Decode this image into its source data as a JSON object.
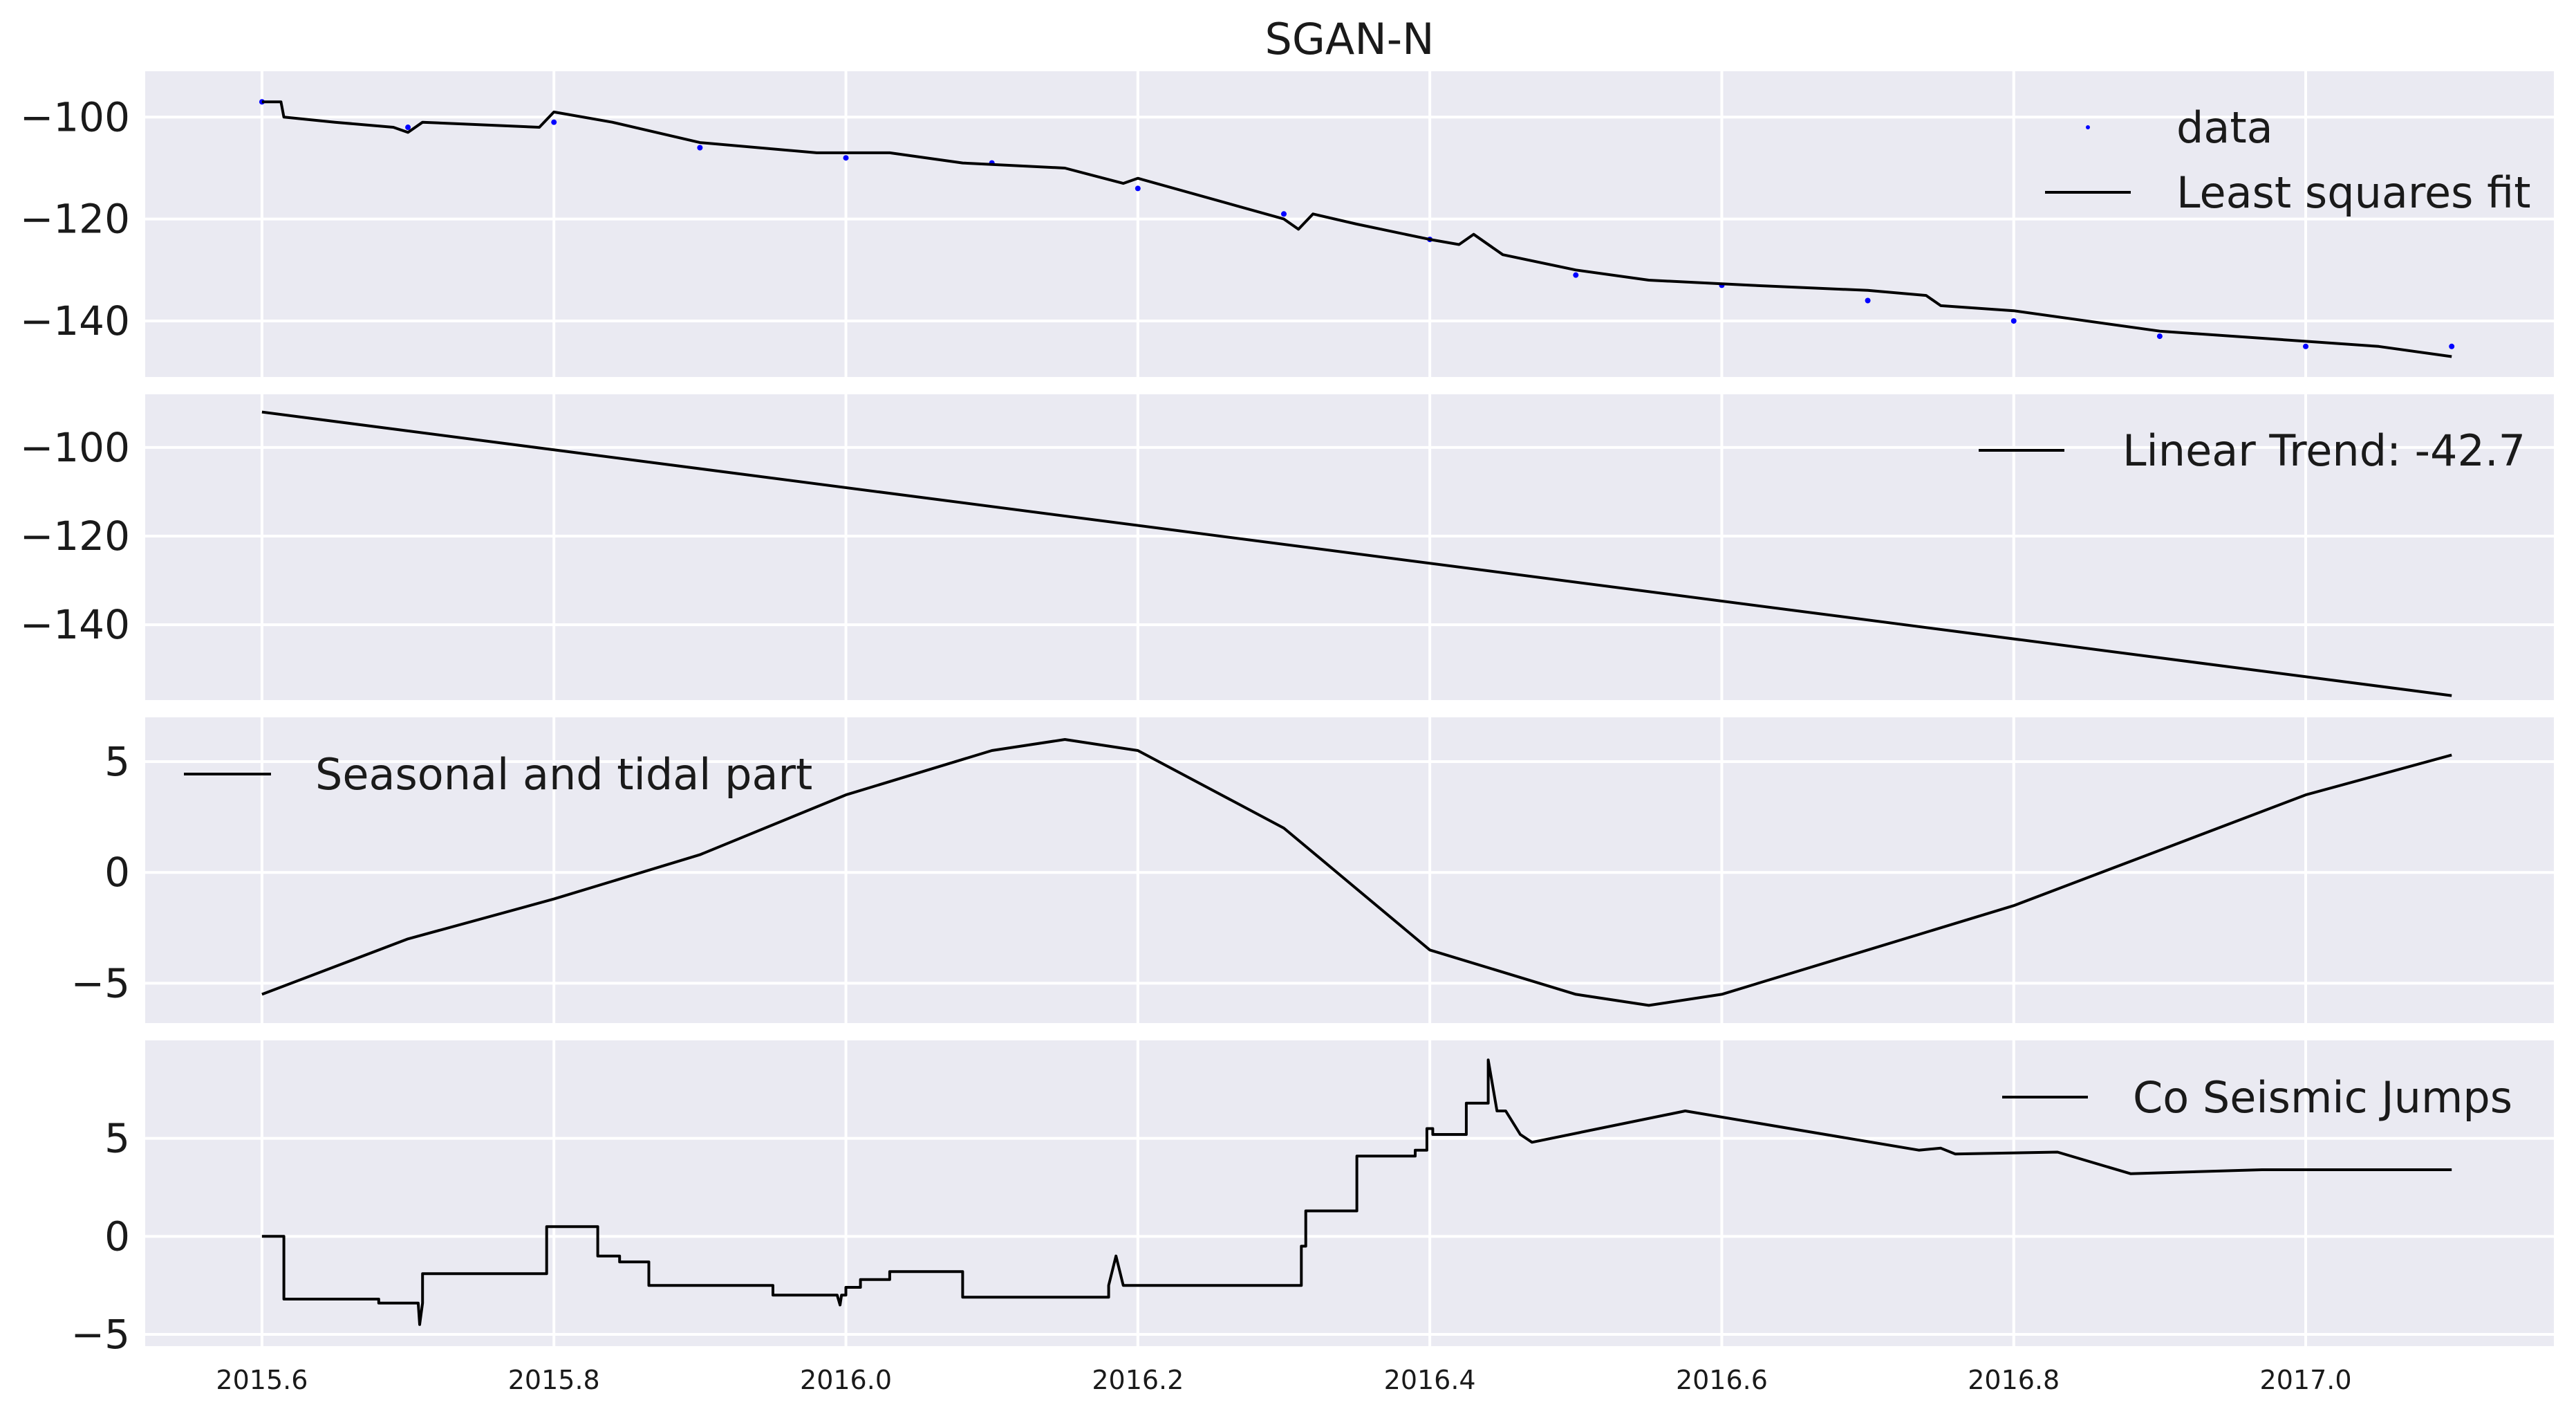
{
  "figure": {
    "title": "SGAN-N"
  },
  "chart_data": [
    {
      "type": "scatter+line",
      "panel": "data",
      "xlim": [
        2015.52,
        2017.17
      ],
      "ylim": [
        -151,
        -91
      ],
      "yticks": [
        -100,
        -120,
        -140
      ],
      "ytick_labels": [
        "−100",
        "−120",
        "−140"
      ],
      "series": [
        {
          "name": "data",
          "style": "points",
          "color": "#0000ff",
          "x": [
            2015.6,
            2015.7,
            2015.8,
            2015.9,
            2016.0,
            2016.1,
            2016.2,
            2016.3,
            2016.4,
            2016.5,
            2016.6,
            2016.7,
            2016.8,
            2016.9,
            2017.0,
            2017.1
          ],
          "y": [
            -97,
            -102,
            -101,
            -106,
            -108,
            -109,
            -114,
            -119,
            -124,
            -131,
            -133,
            -136,
            -140,
            -143,
            -145,
            -145
          ]
        },
        {
          "name": "Least squares fit",
          "style": "line",
          "color": "#000000",
          "x": [
            2015.6,
            2015.613,
            2015.615,
            2015.65,
            2015.69,
            2015.7,
            2015.71,
            2015.79,
            2015.8,
            2015.84,
            2015.9,
            2015.98,
            2016.03,
            2016.08,
            2016.15,
            2016.19,
            2016.2,
            2016.3,
            2016.31,
            2016.32,
            2016.35,
            2016.4,
            2016.42,
            2016.43,
            2016.45,
            2016.5,
            2016.55,
            2016.62,
            2016.7,
            2016.74,
            2016.75,
            2016.8,
            2016.9,
            2017.0,
            2017.05,
            2017.1
          ],
          "y": [
            -97,
            -97,
            -100,
            -101,
            -102,
            -103,
            -101,
            -102,
            -99,
            -101,
            -105,
            -107,
            -107,
            -109,
            -110,
            -113,
            -112,
            -120,
            -122,
            -119,
            -121,
            -124,
            -125,
            -123,
            -127,
            -130,
            -132,
            -133,
            -134,
            -135,
            -137,
            -138,
            -142,
            -144,
            -145,
            -147
          ]
        }
      ],
      "legend": [
        "data",
        "Least squares fit"
      ],
      "legend_position": "top-right"
    },
    {
      "type": "line",
      "panel": "linear",
      "xlim": [
        2015.52,
        2017.17
      ],
      "ylim": [
        -157,
        -88
      ],
      "yticks": [
        -100,
        -120,
        -140
      ],
      "ytick_labels": [
        "−100",
        "−120",
        "−140"
      ],
      "series": [
        {
          "name": "Linear Trend: -42.7",
          "x": [
            2015.6,
            2017.1
          ],
          "y": [
            -92,
            -156
          ]
        }
      ],
      "legend": [
        "Linear Trend: -42.7"
      ],
      "legend_position": "top-right"
    },
    {
      "type": "line",
      "panel": "seasonal",
      "xlim": [
        2015.52,
        2017.17
      ],
      "ylim": [
        -6.8,
        7.0
      ],
      "yticks": [
        5,
        0,
        -5
      ],
      "ytick_labels": [
        "5",
        "0",
        "−5"
      ],
      "series": [
        {
          "name": "Seasonal and tidal part",
          "x": [
            2015.6,
            2015.7,
            2015.8,
            2015.9,
            2016.0,
            2016.1,
            2016.15,
            2016.2,
            2016.3,
            2016.4,
            2016.5,
            2016.55,
            2016.6,
            2016.7,
            2016.8,
            2016.9,
            2017.0,
            2017.1
          ],
          "y": [
            -5.5,
            -3.0,
            -1.2,
            0.8,
            3.5,
            5.5,
            6.0,
            5.5,
            2.0,
            -3.5,
            -5.5,
            -6.0,
            -5.5,
            -3.5,
            -1.5,
            1.0,
            3.5,
            5.3
          ]
        }
      ],
      "legend": [
        "Seasonal and tidal part"
      ],
      "legend_position": "top-left"
    },
    {
      "type": "line",
      "panel": "jumps",
      "xlim": [
        2015.52,
        2017.17
      ],
      "ylim": [
        -5.6,
        10.0
      ],
      "yticks": [
        5,
        0,
        -5
      ],
      "ytick_labels": [
        "5",
        "0",
        "−5"
      ],
      "xticks": [
        2015.6,
        2015.8,
        2016.0,
        2016.2,
        2016.4,
        2016.6,
        2016.8,
        2017.0
      ],
      "xtick_labels": [
        "2015.6",
        "2015.8",
        "2016.0",
        "2016.2",
        "2016.4",
        "2016.6",
        "2016.8",
        "2017.0"
      ],
      "series": [
        {
          "name": "Co Seismic Jumps",
          "x": [
            2015.6,
            2015.614,
            2015.614,
            2015.615,
            2015.615,
            2015.68,
            2015.68,
            2015.705,
            2015.705,
            2015.707,
            2015.708,
            2015.71,
            2015.71,
            2015.795,
            2015.795,
            2015.83,
            2015.83,
            2015.845,
            2015.845,
            2015.865,
            2015.865,
            2015.95,
            2015.95,
            2015.994,
            2015.994,
            2015.996,
            2015.997,
            2016.0,
            2016.0,
            2016.01,
            2016.01,
            2016.03,
            2016.03,
            2016.07,
            2016.07,
            2016.08,
            2016.08,
            2016.18,
            2016.18,
            2016.185,
            2016.19,
            2016.195,
            2016.195,
            2016.312,
            2016.312,
            2016.315,
            2016.315,
            2016.35,
            2016.35,
            2016.39,
            2016.39,
            2016.398,
            2016.398,
            2016.402,
            2016.402,
            2016.405,
            2016.405,
            2016.425,
            2016.425,
            2016.435,
            2016.435,
            2016.44,
            2016.44,
            2016.446,
            2016.452,
            2016.452,
            2016.462,
            2016.462,
            2016.47,
            2016.47,
            2016.575,
            2016.575,
            2016.735,
            2016.735,
            2016.75,
            2016.75,
            2016.76,
            2016.76,
            2016.83,
            2016.83,
            2016.88,
            2016.88,
            2016.97,
            2016.97,
            2017.1
          ],
          "y": [
            0,
            0,
            0,
            0,
            -3.2,
            -3.2,
            -3.4,
            -3.4,
            -3.4,
            -3.4,
            -4.5,
            -3.4,
            -1.9,
            -1.9,
            0.5,
            0.5,
            -1.0,
            -1.0,
            -1.3,
            -1.3,
            -2.5,
            -2.5,
            -3.0,
            -3.0,
            -3.0,
            -3.5,
            -3.0,
            -3.0,
            -2.6,
            -2.6,
            -2.2,
            -2.2,
            -1.8,
            -1.8,
            -1.8,
            -1.8,
            -3.1,
            -3.1,
            -2.5,
            -1.0,
            -2.5,
            -2.5,
            -2.5,
            -2.5,
            -0.5,
            -0.5,
            1.3,
            1.3,
            4.1,
            4.1,
            4.4,
            4.4,
            5.5,
            5.5,
            5.2,
            5.2,
            5.2,
            5.2,
            6.8,
            6.8,
            6.8,
            6.8,
            9.0,
            6.4,
            6.4,
            6.4,
            5.2,
            5.2,
            4.8,
            4.8,
            6.4,
            6.4,
            4.4,
            4.4,
            4.5,
            4.5,
            4.2,
            4.2,
            4.3,
            4.3,
            3.2,
            3.2,
            3.4,
            3.4,
            3.4
          ]
        }
      ],
      "legend": [
        "Co Seismic Jumps"
      ],
      "legend_position": "top-right"
    }
  ]
}
